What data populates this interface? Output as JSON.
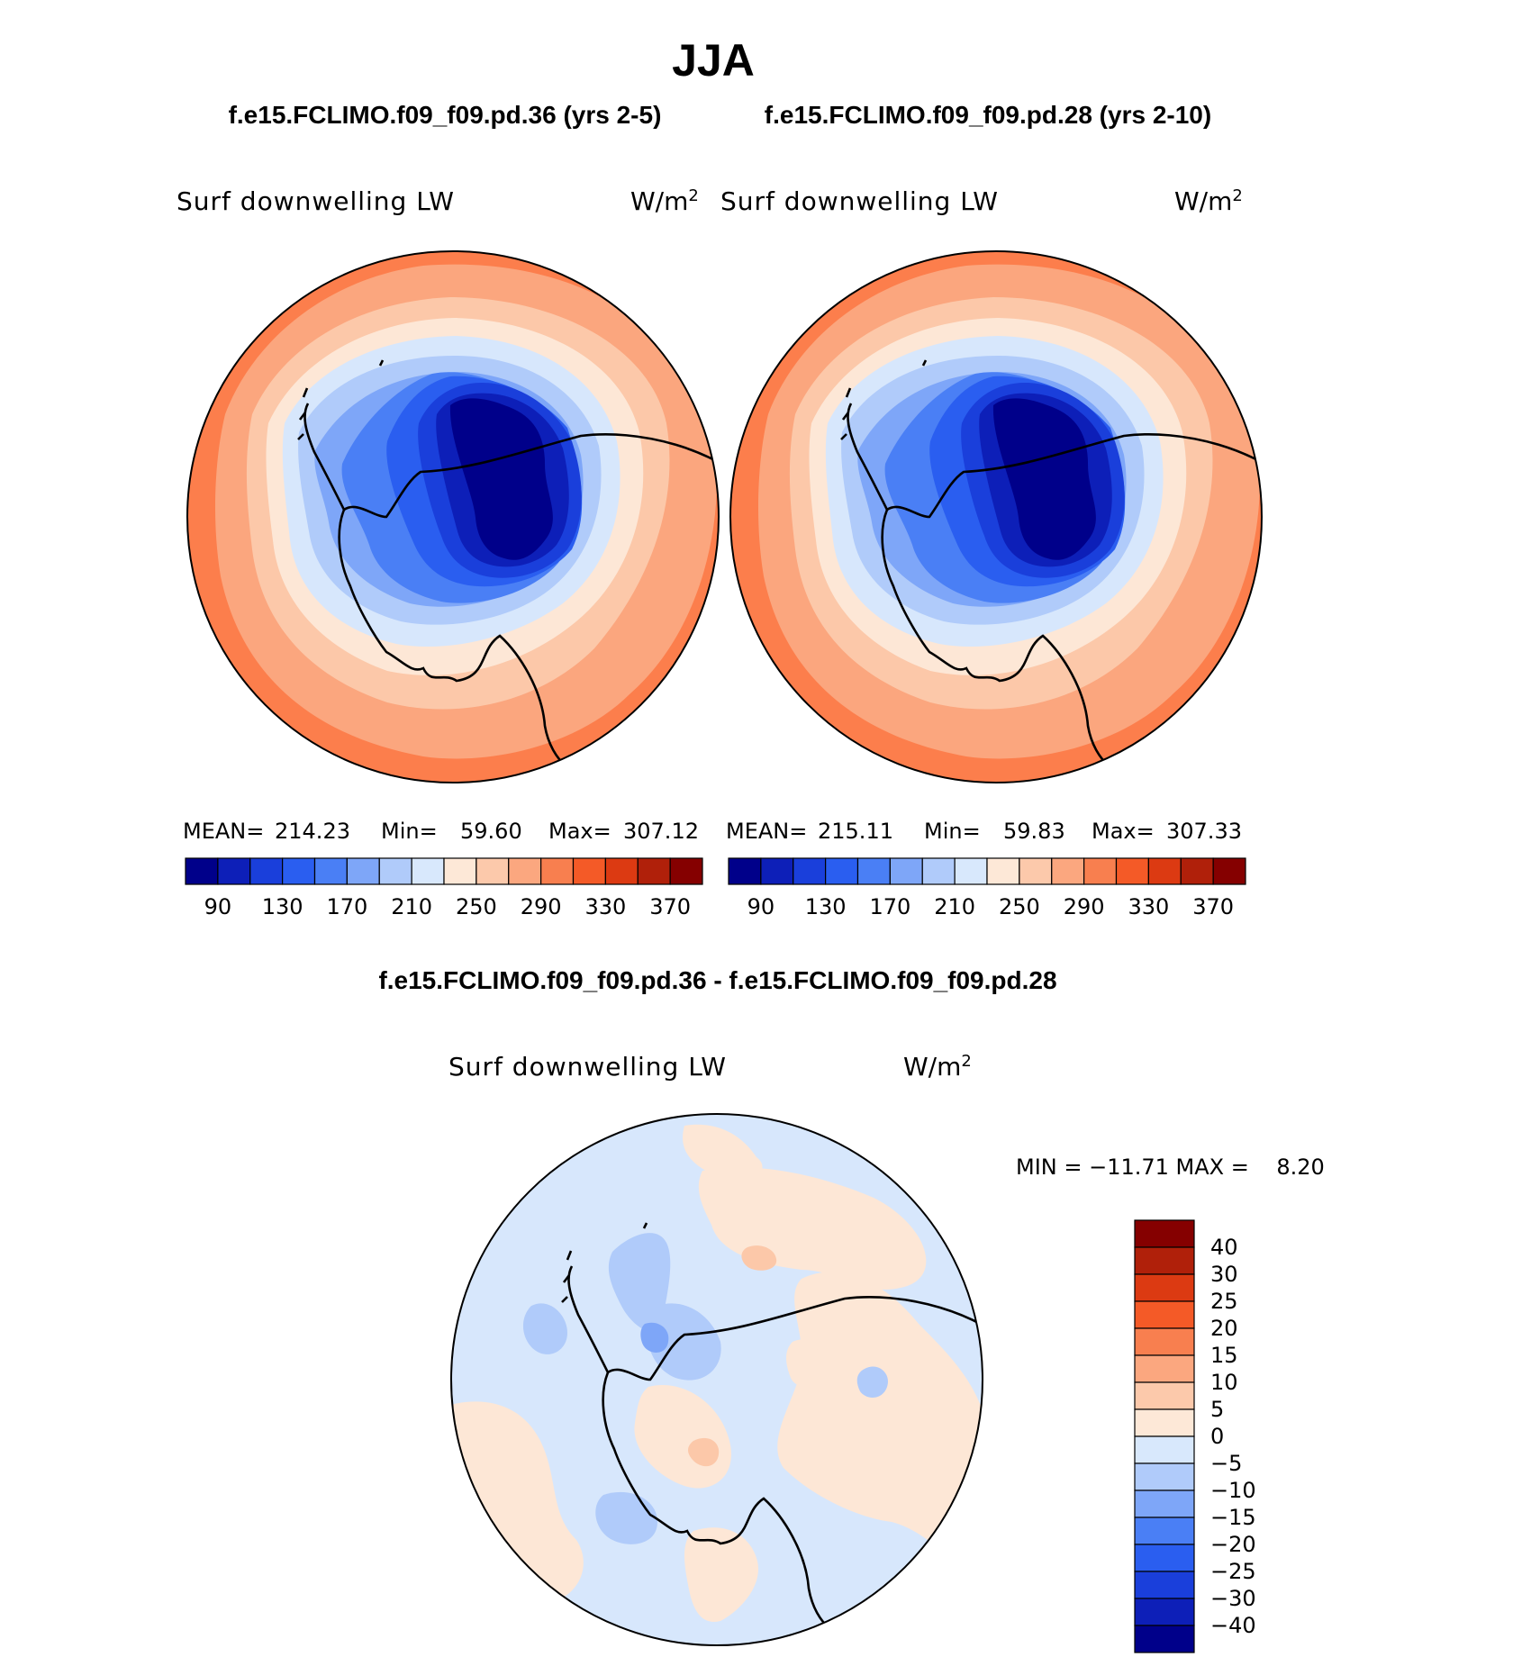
{
  "title": "JJA",
  "panel_titles": {
    "left": "f.e15.FCLIMO.f09_f09.pd.36 (yrs 2-5)",
    "right": "f.e15.FCLIMO.f09_f09.pd.28 (yrs 2-10)"
  },
  "diff_title": "f.e15.FCLIMO.f09_f09.pd.36 - f.e15.FCLIMO.f09_f09.pd.28",
  "panels": [
    {
      "variable": "Surf downwelling LW",
      "units": "W/m",
      "units_sup": "2",
      "stats": {
        "mean_label": "MEAN=",
        "mean": "214.23",
        "min_label": "Min=",
        "min": "59.60",
        "max_label": "Max=",
        "max": "307.12"
      }
    },
    {
      "variable": "Surf downwelling LW",
      "units": "W/m",
      "units_sup": "2",
      "stats": {
        "mean_label": "MEAN=",
        "mean": "215.11",
        "min_label": "Min=",
        "min": "59.83",
        "max_label": "Max=",
        "max": "307.33"
      }
    }
  ],
  "diff_panel": {
    "variable": "Surf downwelling LW",
    "units": "W/m",
    "units_sup": "2",
    "minmax": "MIN = −11.71 MAX =    8.20"
  },
  "chart_data": [
    {
      "type": "contour-map",
      "title": "Surf downwelling LW (W/m2), f.e15.FCLIMO.f09_f09.pd.36 (yrs 2-5)",
      "projection": "south polar stereographic",
      "mean": 214.23,
      "min": 59.6,
      "max": 307.12,
      "levels": [
        70,
        90,
        110,
        130,
        150,
        170,
        190,
        210,
        230,
        250,
        270,
        290,
        310,
        330,
        350,
        370
      ],
      "level_labels": [
        "90",
        "130",
        "170",
        "210",
        "250",
        "290",
        "330",
        "370"
      ],
      "colors": [
        "#00008a",
        "#0d1fb8",
        "#1a3fdb",
        "#2a5ef0",
        "#4a7ff5",
        "#7ea6f8",
        "#b0cbfa",
        "#d8e8fc",
        "#fde8d7",
        "#fcc9ab",
        "#fba77f",
        "#f87f4f",
        "#f45a27",
        "#dc3a12",
        "#b0200a",
        "#850000"
      ]
    },
    {
      "type": "contour-map",
      "title": "Surf downwelling LW (W/m2), f.e15.FCLIMO.f09_f09.pd.28 (yrs 2-10)",
      "projection": "south polar stereographic",
      "mean": 215.11,
      "min": 59.83,
      "max": 307.33,
      "levels": [
        70,
        90,
        110,
        130,
        150,
        170,
        190,
        210,
        230,
        250,
        270,
        290,
        310,
        330,
        350,
        370
      ],
      "level_labels": [
        "90",
        "130",
        "170",
        "210",
        "250",
        "290",
        "330",
        "370"
      ],
      "colors": [
        "#00008a",
        "#0d1fb8",
        "#1a3fdb",
        "#2a5ef0",
        "#4a7ff5",
        "#7ea6f8",
        "#b0cbfa",
        "#d8e8fc",
        "#fde8d7",
        "#fcc9ab",
        "#fba77f",
        "#f87f4f",
        "#f45a27",
        "#dc3a12",
        "#b0200a",
        "#850000"
      ]
    },
    {
      "type": "contour-map",
      "title": "Surf downwelling LW (W/m2), difference",
      "projection": "south polar stereographic",
      "min": -11.71,
      "max": 8.2,
      "levels": [
        -40,
        -30,
        -25,
        -20,
        -15,
        -10,
        -5,
        0,
        5,
        10,
        15,
        20,
        25,
        30,
        40
      ],
      "level_labels": [
        "40",
        "30",
        "25",
        "20",
        "15",
        "10",
        "5",
        "0",
        "−5",
        "−10",
        "−15",
        "−20",
        "−25",
        "−30",
        "−40"
      ],
      "colors": [
        "#00008a",
        "#0d1fb8",
        "#1a3fdb",
        "#2a5ef0",
        "#4a7ff5",
        "#7ea6f8",
        "#b0cbfa",
        "#d8e8fc",
        "#fde8d7",
        "#fcc9ab",
        "#fba77f",
        "#f87f4f",
        "#f45a27",
        "#dc3a12",
        "#b0200a",
        "#850000"
      ]
    }
  ]
}
